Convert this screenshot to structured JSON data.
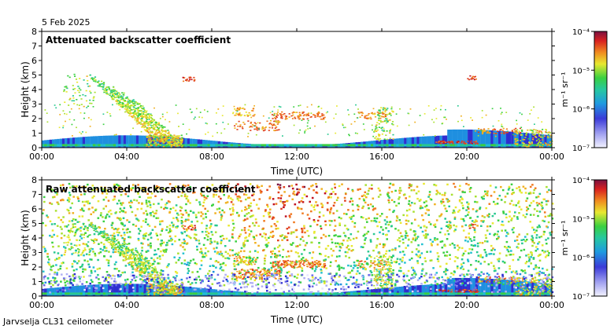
{
  "date": "5 Feb 2025",
  "footer": "Jarvselja CL31 ceilometer",
  "chart_data": [
    {
      "type": "heatmap",
      "title": "Attenuated backscatter coefficient",
      "xlabel": "Time (UTC)",
      "ylabel": "Height (km)",
      "xlim": [
        0,
        24
      ],
      "ylim": [
        0,
        8
      ],
      "x_ticks": [
        "00:00",
        "04:00",
        "08:00",
        "12:00",
        "16:00",
        "20:00",
        "00:00"
      ],
      "x_tick_hours": [
        0,
        4,
        8,
        12,
        16,
        20,
        24
      ],
      "y_ticks": [
        "0",
        "1",
        "2",
        "3",
        "4",
        "5",
        "6",
        "7",
        "8"
      ],
      "colorbar": {
        "label": "m⁻¹ sr⁻¹",
        "scale": "log",
        "range": [
          1e-07,
          0.0001
        ],
        "tick_labels": [
          "10⁻⁴",
          "10⁻⁵",
          "10⁻⁶",
          "10⁻⁷"
        ]
      }
    },
    {
      "type": "heatmap",
      "title": "Raw attenuated backscatter coefficient",
      "xlabel": "Time (UTC)",
      "ylabel": "Height (km)",
      "xlim": [
        0,
        24
      ],
      "ylim": [
        0,
        8
      ],
      "x_ticks": [
        "00:00",
        "04:00",
        "08:00",
        "12:00",
        "16:00",
        "20:00",
        "00:00"
      ],
      "x_tick_hours": [
        0,
        4,
        8,
        12,
        16,
        20,
        24
      ],
      "y_ticks": [
        "0",
        "1",
        "2",
        "3",
        "4",
        "5",
        "6",
        "7",
        "8"
      ],
      "colorbar": {
        "label": "m⁻¹ sr⁻¹",
        "scale": "log",
        "range": [
          1e-07,
          0.0001
        ],
        "tick_labels": [
          "10⁻⁴",
          "10⁻⁵",
          "10⁻⁶",
          "10⁻⁷"
        ]
      }
    }
  ]
}
